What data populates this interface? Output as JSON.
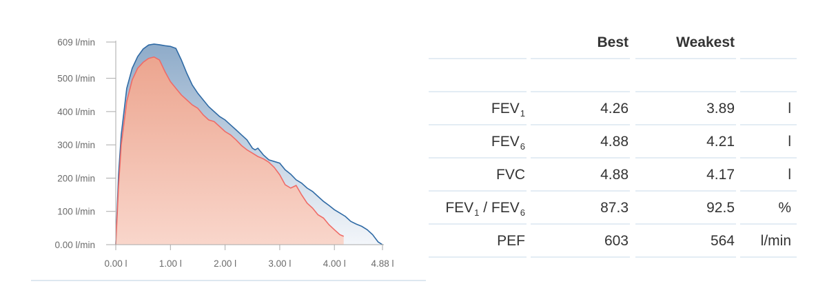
{
  "chart_data": {
    "type": "area",
    "x_unit": "l",
    "y_unit": "l/min",
    "xlim": [
      0,
      4.88
    ],
    "ylim": [
      0,
      609
    ],
    "x_ticks": [
      "0.00 l",
      "1.00 l",
      "2.00 l",
      "3.00 l",
      "4.00 l",
      "4.88 l"
    ],
    "x_tick_values": [
      0,
      1,
      2,
      3,
      4,
      4.88
    ],
    "y_ticks": [
      "0.00 l/min",
      "100 l/min",
      "200 l/min",
      "300 l/min",
      "400 l/min",
      "500 l/min",
      "609 l/min"
    ],
    "y_tick_values": [
      0,
      100,
      200,
      300,
      400,
      500,
      609
    ],
    "grid": false,
    "series": [
      {
        "name": "Best",
        "color": "#2f6aa5",
        "x": [
          0,
          0.05,
          0.1,
          0.2,
          0.3,
          0.4,
          0.5,
          0.6,
          0.7,
          0.8,
          0.9,
          1.0,
          1.1,
          1.2,
          1.3,
          1.4,
          1.5,
          1.6,
          1.7,
          1.8,
          1.9,
          2.0,
          2.1,
          2.2,
          2.3,
          2.4,
          2.5,
          2.55,
          2.6,
          2.7,
          2.8,
          2.9,
          3.0,
          3.1,
          3.2,
          3.3,
          3.4,
          3.5,
          3.6,
          3.7,
          3.8,
          3.9,
          4.0,
          4.1,
          4.2,
          4.3,
          4.4,
          4.5,
          4.6,
          4.7,
          4.8,
          4.88
        ],
        "y": [
          0,
          210,
          330,
          470,
          530,
          565,
          588,
          600,
          603,
          601,
          598,
          596,
          590,
          555,
          515,
          480,
          455,
          435,
          415,
          400,
          385,
          375,
          360,
          345,
          330,
          315,
          290,
          285,
          290,
          270,
          255,
          250,
          245,
          225,
          212,
          195,
          185,
          170,
          160,
          145,
          130,
          118,
          105,
          95,
          85,
          70,
          62,
          55,
          45,
          30,
          8,
          0
        ]
      },
      {
        "name": "Weakest",
        "color": "#ef6b67",
        "x": [
          0,
          0.05,
          0.1,
          0.2,
          0.3,
          0.4,
          0.5,
          0.6,
          0.7,
          0.8,
          0.9,
          1.0,
          1.1,
          1.2,
          1.3,
          1.4,
          1.5,
          1.6,
          1.7,
          1.8,
          1.9,
          2.0,
          2.1,
          2.2,
          2.3,
          2.4,
          2.5,
          2.6,
          2.7,
          2.8,
          2.9,
          3.0,
          3.1,
          3.2,
          3.3,
          3.4,
          3.5,
          3.6,
          3.7,
          3.8,
          3.9,
          4.0,
          4.1,
          4.17
        ],
        "y": [
          0,
          175,
          300,
          430,
          495,
          530,
          548,
          560,
          564,
          555,
          520,
          490,
          470,
          450,
          435,
          420,
          410,
          390,
          375,
          370,
          355,
          340,
          330,
          315,
          298,
          285,
          275,
          265,
          258,
          248,
          232,
          210,
          180,
          170,
          178,
          150,
          125,
          110,
          90,
          80,
          60,
          45,
          30,
          25
        ]
      }
    ]
  },
  "table": {
    "headers": {
      "best": "Best",
      "weakest": "Weakest"
    },
    "rows": [
      {
        "label": "FEV",
        "sub": "1",
        "best": "4.26",
        "weakest": "3.89",
        "unit": "l"
      },
      {
        "label": "FEV",
        "sub": "6",
        "best": "4.88",
        "weakest": "4.21",
        "unit": "l"
      },
      {
        "label": "FVC",
        "best": "4.88",
        "weakest": "4.17",
        "unit": "l"
      },
      {
        "label": "FEV",
        "sub": "1",
        "label2": " / FEV",
        "sub2": "6",
        "best": "87.3",
        "weakest": "92.5",
        "unit": "%"
      },
      {
        "label": "PEF",
        "best": "603",
        "weakest": "564",
        "unit": "l/min"
      }
    ]
  }
}
